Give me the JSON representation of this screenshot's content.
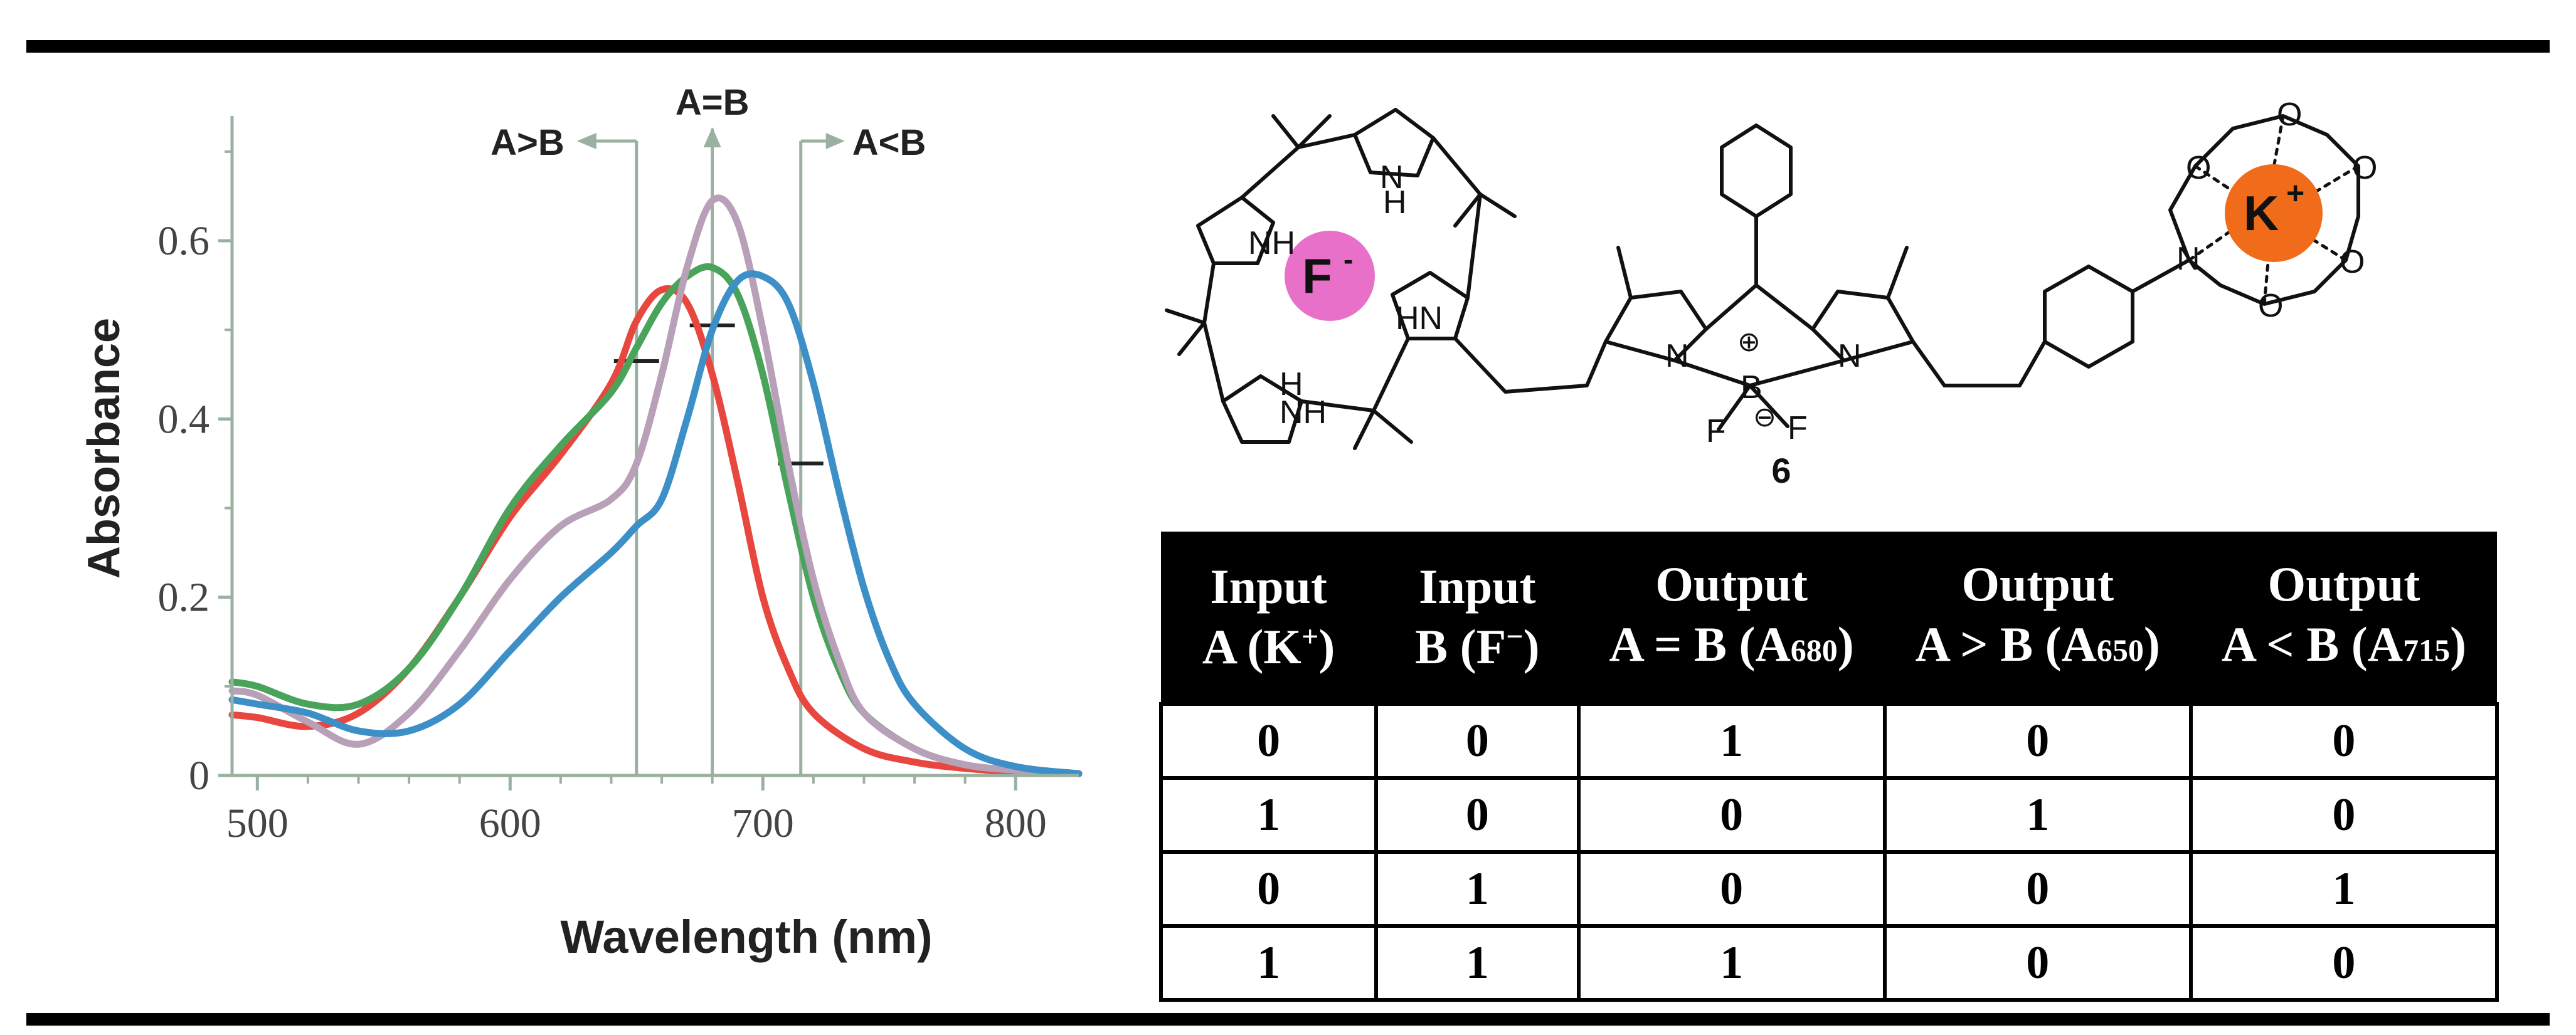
{
  "chart_data": {
    "type": "line",
    "xlabel": "Wavelength (nm)",
    "ylabel": "Absorbance",
    "xlim": [
      490,
      825
    ],
    "ylim": [
      0,
      0.74
    ],
    "xticks": [
      500,
      600,
      700,
      800
    ],
    "yticks": [
      0,
      0.2,
      0.4,
      0.6
    ],
    "ytick_labels": [
      "0",
      "0.2",
      "0.4",
      "0.6"
    ],
    "grid": false,
    "legend": "none",
    "series": [
      {
        "color": "#e8473f",
        "x": [
          490,
          500,
          520,
          540,
          560,
          580,
          600,
          620,
          640,
          650,
          660,
          670,
          680,
          690,
          700,
          710,
          720,
          740,
          760,
          780,
          800,
          825
        ],
        "y": [
          0.068,
          0.065,
          0.055,
          0.07,
          0.12,
          0.2,
          0.29,
          0.36,
          0.44,
          0.51,
          0.545,
          0.53,
          0.45,
          0.33,
          0.2,
          0.12,
          0.07,
          0.03,
          0.015,
          0.008,
          0.004,
          0.002
        ]
      },
      {
        "color": "#4aa35a",
        "x": [
          490,
          500,
          520,
          540,
          560,
          580,
          600,
          620,
          640,
          650,
          660,
          670,
          680,
          690,
          700,
          710,
          720,
          730,
          740,
          760,
          780,
          800,
          825
        ],
        "y": [
          0.105,
          0.1,
          0.08,
          0.08,
          0.12,
          0.2,
          0.3,
          0.37,
          0.43,
          0.48,
          0.53,
          0.56,
          0.57,
          0.54,
          0.45,
          0.32,
          0.2,
          0.12,
          0.07,
          0.03,
          0.012,
          0.006,
          0.002
        ]
      },
      {
        "color": "#b8a0b8",
        "x": [
          490,
          500,
          520,
          540,
          560,
          580,
          600,
          620,
          640,
          650,
          660,
          670,
          680,
          690,
          700,
          710,
          720,
          730,
          740,
          760,
          780,
          800,
          825
        ],
        "y": [
          0.095,
          0.09,
          0.06,
          0.035,
          0.07,
          0.14,
          0.22,
          0.28,
          0.31,
          0.35,
          0.45,
          0.57,
          0.645,
          0.62,
          0.5,
          0.35,
          0.22,
          0.13,
          0.07,
          0.03,
          0.012,
          0.006,
          0.002
        ]
      },
      {
        "color": "#3d8fc8",
        "x": [
          490,
          500,
          520,
          540,
          560,
          580,
          600,
          620,
          640,
          650,
          660,
          670,
          680,
          690,
          700,
          710,
          720,
          730,
          740,
          750,
          760,
          780,
          800,
          825
        ],
        "y": [
          0.085,
          0.08,
          0.07,
          0.05,
          0.05,
          0.08,
          0.14,
          0.2,
          0.25,
          0.28,
          0.31,
          0.4,
          0.5,
          0.555,
          0.56,
          0.53,
          0.44,
          0.32,
          0.21,
          0.13,
          0.08,
          0.03,
          0.01,
          0.002
        ]
      }
    ],
    "guides": [
      {
        "x": 650,
        "label": "A>B",
        "arrow": "left",
        "tick_y": 0.465
      },
      {
        "x": 680,
        "label": "A=B",
        "arrow": "up",
        "tick_y": 0.505
      },
      {
        "x": 715,
        "label": "A<B",
        "arrow": "right",
        "tick_y": 0.35
      }
    ]
  },
  "structure": {
    "compound_number": "6",
    "fluoride_label": "F",
    "fluoride_charge": "-",
    "potassium_label": "K",
    "potassium_charge": "+",
    "atom_labels": [
      "NH",
      "H",
      "N",
      "NH",
      "H",
      "N",
      "HN",
      "N",
      "N",
      "B",
      "F",
      "F",
      "N",
      "O",
      "O",
      "O",
      "O",
      "O",
      "⊕",
      "⊖"
    ]
  },
  "truth_table": {
    "headers": [
      {
        "l1": "Input",
        "l2": "A (K",
        "sup": "+",
        "tail": ")"
      },
      {
        "l1": "Input",
        "l2": "B (F",
        "sup": "−",
        "tail": ")"
      },
      {
        "l1": "Output",
        "l2": "A = B (A",
        "sub": "680",
        "tail": ")"
      },
      {
        "l1": "Output",
        "l2": "A > B (A",
        "sub": "650",
        "tail": ")"
      },
      {
        "l1": "Output",
        "l2": "A < B (A",
        "sub": "715",
        "tail": ")"
      }
    ],
    "rows": [
      [
        "0",
        "0",
        "1",
        "0",
        "0"
      ],
      [
        "1",
        "0",
        "0",
        "1",
        "0"
      ],
      [
        "0",
        "1",
        "0",
        "0",
        "1"
      ],
      [
        "1",
        "1",
        "1",
        "0",
        "0"
      ]
    ]
  }
}
